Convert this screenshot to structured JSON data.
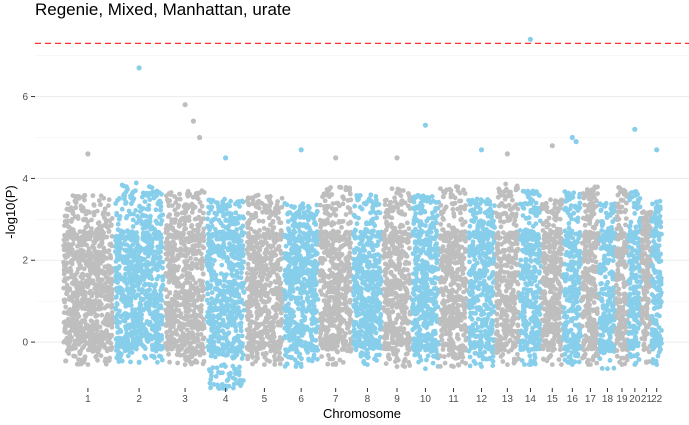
{
  "chart_data": {
    "type": "scatter",
    "subtype": "manhattan",
    "title": "Regenie, Mixed, Manhattan, urate",
    "xlabel": "Chromosome",
    "ylabel": "-log10(P)",
    "ylim": [
      -1.0,
      7.7
    ],
    "y_ticks": [
      0,
      2,
      4,
      6
    ],
    "y_tick_labels": [
      "0",
      "2",
      "4",
      "6"
    ],
    "grid": "horizontal",
    "significance_line": {
      "y": 7.3,
      "color": "#ff3333",
      "style": "dashed"
    },
    "colors": {
      "odd": "#bebebe",
      "even": "#87ceeb"
    },
    "chromosomes": [
      {
        "label": "1",
        "start": 0,
        "end": 248,
        "max": 4.6,
        "dense_max": 3.6,
        "min": -0.55
      },
      {
        "label": "2",
        "start": 248,
        "end": 490,
        "max": 6.7,
        "dense_max": 3.9,
        "min": -0.5
      },
      {
        "label": "3",
        "start": 490,
        "end": 688,
        "max": 5.8,
        "dense_max": 3.7,
        "min": -0.55
      },
      {
        "label": "4",
        "start": 688,
        "end": 878,
        "max": 4.5,
        "dense_max": 3.5,
        "min": -1.15
      },
      {
        "label": "5",
        "start": 878,
        "end": 1059,
        "max": 4.7,
        "dense_max": 3.6,
        "min": -0.55
      },
      {
        "label": "6",
        "start": 1059,
        "end": 1230,
        "max": 4.7,
        "dense_max": 3.4,
        "min": -0.6
      },
      {
        "label": "7",
        "start": 1230,
        "end": 1389,
        "max": 4.5,
        "dense_max": 3.8,
        "min": -0.55
      },
      {
        "label": "8",
        "start": 1389,
        "end": 1534,
        "max": 4.0,
        "dense_max": 3.6,
        "min": -0.55
      },
      {
        "label": "9",
        "start": 1534,
        "end": 1672,
        "max": 4.5,
        "dense_max": 3.8,
        "min": -0.6
      },
      {
        "label": "10",
        "start": 1672,
        "end": 1806,
        "max": 5.3,
        "dense_max": 3.6,
        "min": -0.65
      },
      {
        "label": "11",
        "start": 1806,
        "end": 1941,
        "max": 4.0,
        "dense_max": 3.8,
        "min": -0.6
      },
      {
        "label": "12",
        "start": 1941,
        "end": 2074,
        "max": 4.7,
        "dense_max": 3.5,
        "min": -0.6
      },
      {
        "label": "13",
        "start": 2074,
        "end": 2188,
        "max": 4.6,
        "dense_max": 3.9,
        "min": -0.55
      },
      {
        "label": "14",
        "start": 2188,
        "end": 2295,
        "max": 7.4,
        "dense_max": 3.7,
        "min": -0.55
      },
      {
        "label": "15",
        "start": 2295,
        "end": 2397,
        "max": 4.8,
        "dense_max": 3.5,
        "min": -0.55
      },
      {
        "label": "16",
        "start": 2397,
        "end": 2487,
        "max": 5.0,
        "dense_max": 3.7,
        "min": -0.55
      },
      {
        "label": "17",
        "start": 2487,
        "end": 2570,
        "max": 4.2,
        "dense_max": 3.8,
        "min": -0.55
      },
      {
        "label": "18",
        "start": 2570,
        "end": 2650,
        "max": 4.6,
        "dense_max": 3.4,
        "min": -0.65
      },
      {
        "label": "19",
        "start": 2650,
        "end": 2709,
        "max": 4.5,
        "dense_max": 3.8,
        "min": -0.55
      },
      {
        "label": "20",
        "start": 2709,
        "end": 2773,
        "max": 5.2,
        "dense_max": 3.7,
        "min": -0.55
      },
      {
        "label": "21",
        "start": 2773,
        "end": 2820,
        "max": 3.4,
        "dense_max": 3.2,
        "min": -0.5
      },
      {
        "label": "22",
        "start": 2820,
        "end": 2871,
        "max": 4.7,
        "dense_max": 3.5,
        "min": -0.55
      }
    ],
    "notable_points": [
      {
        "chromosome": "1",
        "y": 4.6
      },
      {
        "chromosome": "2",
        "y": 6.7
      },
      {
        "chromosome": "3",
        "y": 5.8
      },
      {
        "chromosome": "3",
        "y": 5.4
      },
      {
        "chromosome": "3",
        "y": 5.0
      },
      {
        "chromosome": "4",
        "y": 4.5
      },
      {
        "chromosome": "6",
        "y": 4.7
      },
      {
        "chromosome": "7",
        "y": 4.5
      },
      {
        "chromosome": "9",
        "y": 4.5
      },
      {
        "chromosome": "10",
        "y": 5.3
      },
      {
        "chromosome": "12",
        "y": 4.7
      },
      {
        "chromosome": "13",
        "y": 4.6
      },
      {
        "chromosome": "14",
        "y": 7.4
      },
      {
        "chromosome": "15",
        "y": 4.8
      },
      {
        "chromosome": "16",
        "y": 5.0
      },
      {
        "chromosome": "16",
        "y": 4.9
      },
      {
        "chromosome": "20",
        "y": 5.2
      },
      {
        "chromosome": "22",
        "y": 4.7
      }
    ]
  }
}
